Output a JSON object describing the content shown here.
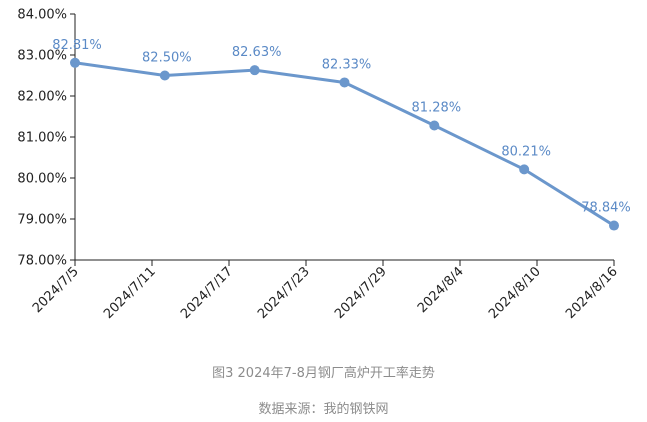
{
  "chart_data": {
    "type": "line",
    "title": "",
    "xlabel": "",
    "ylabel": "",
    "x_ticks": [
      "2024/7/5",
      "2024/7/11",
      "2024/7/17",
      "2024/7/23",
      "2024/7/29",
      "2024/8/4",
      "2024/8/10",
      "2024/8/16"
    ],
    "ylim": [
      78.0,
      84.0
    ],
    "y_ticks": [
      "78.00%",
      "79.00%",
      "80.00%",
      "81.00%",
      "82.00%",
      "83.00%",
      "84.00%"
    ],
    "grid": false,
    "legend": "none",
    "series": [
      {
        "color": "#6b97cc",
        "points": [
          {
            "x": "2024/7/5",
            "y": 82.81,
            "label": "82.81%"
          },
          {
            "x": "2024/7/12",
            "y": 82.5,
            "label": "82.50%"
          },
          {
            "x": "2024/7/19",
            "y": 82.63,
            "label": "82.63%"
          },
          {
            "x": "2024/7/26",
            "y": 82.33,
            "label": "82.33%"
          },
          {
            "x": "2024/8/2",
            "y": 81.28,
            "label": "81.28%"
          },
          {
            "x": "2024/8/9",
            "y": 80.21,
            "label": "80.21%"
          },
          {
            "x": "2024/8/16",
            "y": 78.84,
            "label": "78.84%"
          }
        ]
      }
    ],
    "label_color": "#5b8ac6",
    "axis_color": "#222222"
  },
  "captions": {
    "figure": "图3  2024年7-8月钢厂高炉开工率走势",
    "source": "数据来源：我的钢铁网"
  }
}
